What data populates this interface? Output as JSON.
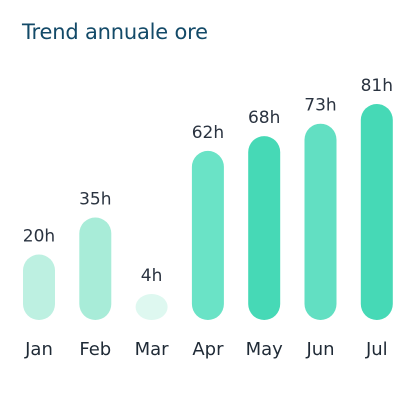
{
  "chart_data": {
    "type": "bar",
    "title": "Trend annuale ore",
    "categories": [
      "Jan",
      "Feb",
      "Mar",
      "Apr",
      "May",
      "Jun",
      "Jul"
    ],
    "values": [
      20,
      35,
      4,
      62,
      68,
      73,
      81
    ],
    "value_labels": [
      "20h",
      "35h",
      "4h",
      "62h",
      "68h",
      "73h",
      "81h"
    ],
    "bar_colors": [
      "#bdf0e1",
      "#a8ecd8",
      "#def8f0",
      "#6ae3c6",
      "#46d9b6",
      "#62dfc2",
      "#46d9b6"
    ],
    "ylim": [
      0,
      81
    ],
    "grid": false,
    "xlabel": "",
    "ylabel": ""
  }
}
